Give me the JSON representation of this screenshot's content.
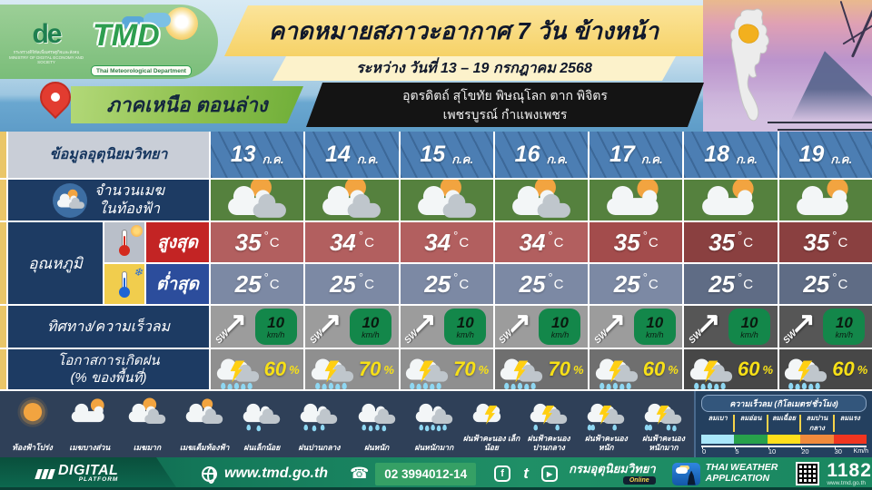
{
  "branding": {
    "de_text": "de",
    "ministry_caption_th": "กระทรวงดิจิทัลเพื่อเศรษฐกิจและสังคม",
    "ministry_caption_en": "MINISTRY OF DIGITAL ECONOMY AND SOCIETY",
    "tmd_text": "TMD",
    "tmd_caption": "Thai Meteorological Department"
  },
  "header": {
    "title": "คาดหมายสภาวะอากาศ 7 วัน ข้างหน้า",
    "date_range": "ระหว่าง วันที่  13 – 19 กรกฎาคม 2568"
  },
  "region": {
    "name": "ภาคเหนือ ตอนล่าง",
    "provinces_line1": "อุตรดิตถ์ สุโขทัย พิษณุโลก ตาก พิจิตร",
    "provinces_line2": "เพชรบูรณ์ กำแพงเพชร"
  },
  "table": {
    "corner_label": "ข้อมูลอุตุนิยมวิทยา",
    "dates": [
      {
        "day": "13",
        "month": "ก.ค."
      },
      {
        "day": "14",
        "month": "ก.ค."
      },
      {
        "day": "15",
        "month": "ก.ค."
      },
      {
        "day": "16",
        "month": "ก.ค."
      },
      {
        "day": "17",
        "month": "ก.ค."
      },
      {
        "day": "18",
        "month": "ก.ค."
      },
      {
        "day": "19",
        "month": "ก.ค."
      }
    ],
    "cloud_label_line1": "จำนวนเมฆ",
    "cloud_label_line2": "ในท้องฟ้า",
    "cloud_icons": [
      "mostly-cloudy",
      "mostly-cloudy",
      "mostly-cloudy",
      "mostly-cloudy",
      "partly-cloudy",
      "partly-cloudy",
      "partly-cloudy"
    ],
    "temp_label": "อุณหภูมิ",
    "max_label": "สูงสุด",
    "min_label": "ต่ำสุด",
    "degree_sign": "°",
    "temp_unit": "C",
    "max_temps": [
      "35",
      "34",
      "34",
      "34",
      "35",
      "35",
      "35"
    ],
    "min_temps": [
      "25",
      "25",
      "25",
      "25",
      "25",
      "25",
      "25"
    ],
    "wind_label": "ทิศทาง/ความเร็วลม",
    "wind": [
      {
        "dir": "SW",
        "speed": "10",
        "unit": "km/h"
      },
      {
        "dir": "SW",
        "speed": "10",
        "unit": "km/h"
      },
      {
        "dir": "SW",
        "speed": "10",
        "unit": "km/h"
      },
      {
        "dir": "SW",
        "speed": "10",
        "unit": "km/h"
      },
      {
        "dir": "SW",
        "speed": "10",
        "unit": "km/h"
      },
      {
        "dir": "SW",
        "speed": "10",
        "unit": "km/h"
      },
      {
        "dir": "SW",
        "speed": "10",
        "unit": "km/h"
      }
    ],
    "rain_label_line1": "โอกาสการเกิดฝน",
    "rain_label_line2": "(% ของพื้นที่)",
    "pct_sign": "%",
    "rain": [
      {
        "pct": "60"
      },
      {
        "pct": "70"
      },
      {
        "pct": "70"
      },
      {
        "pct": "70"
      },
      {
        "pct": "60"
      },
      {
        "pct": "60"
      },
      {
        "pct": "60"
      }
    ]
  },
  "legend": {
    "items": [
      {
        "label": "ท้องฟ้าโปร่ง",
        "icon": "sun"
      },
      {
        "label": "เมฆบางส่วน",
        "icon": "partly-cloudy"
      },
      {
        "label": "เมฆมาก",
        "icon": "mostly-cloudy"
      },
      {
        "label": "เมฆเต็มท้องฟ้า",
        "icon": "overcast"
      },
      {
        "label": "ฝนเล็กน้อย",
        "icon": "rain-light"
      },
      {
        "label": "ฝนปานกลาง",
        "icon": "rain-moderate"
      },
      {
        "label": "ฝนหนัก",
        "icon": "rain-heavy"
      },
      {
        "label": "ฝนหนักมาก",
        "icon": "rain-very-heavy"
      },
      {
        "label": "ฝนฟ้าคะนอง เล็กน้อย",
        "icon": "thunder-light"
      },
      {
        "label": "ฝนฟ้าคะนอง ปานกลาง",
        "icon": "thunder-moderate"
      },
      {
        "label": "ฝนฟ้าคะนอง หนัก",
        "icon": "thunder-heavy"
      },
      {
        "label": "ฝนฟ้าคะนอง หนักมาก",
        "icon": "thunder-very-heavy"
      }
    ],
    "wind_scale": {
      "title": "ความเร็วลม (กิโลเมตร/ชั่วโมง)",
      "categories": [
        {
          "label": "ลมเบา",
          "color": "#a9e7fa"
        },
        {
          "label": "ลมอ่อน",
          "color": "#27a14b"
        },
        {
          "label": "ลมเฉื่อย",
          "color": "#ffdf1b"
        },
        {
          "label": "ลมปานกลาง",
          "color": "#f08a3c"
        },
        {
          "label": "ลมแรง",
          "color": "#f03520"
        }
      ],
      "ticks": [
        "0",
        "5",
        "10",
        "20",
        "30"
      ],
      "unit": "Km/h"
    }
  },
  "footer": {
    "digital": "DIGITAL",
    "platform": "PLATFORM",
    "website": "www.tmd.go.th",
    "phone": "02 3994012-14",
    "dept_online": "กรมอุตุนิยมวิทยา",
    "online_badge": "Online",
    "app_line1": "THAI WEATHER",
    "app_line2": "APPLICATION",
    "hotline": "1182",
    "hotline_sub": "www.tmd.go.th"
  }
}
